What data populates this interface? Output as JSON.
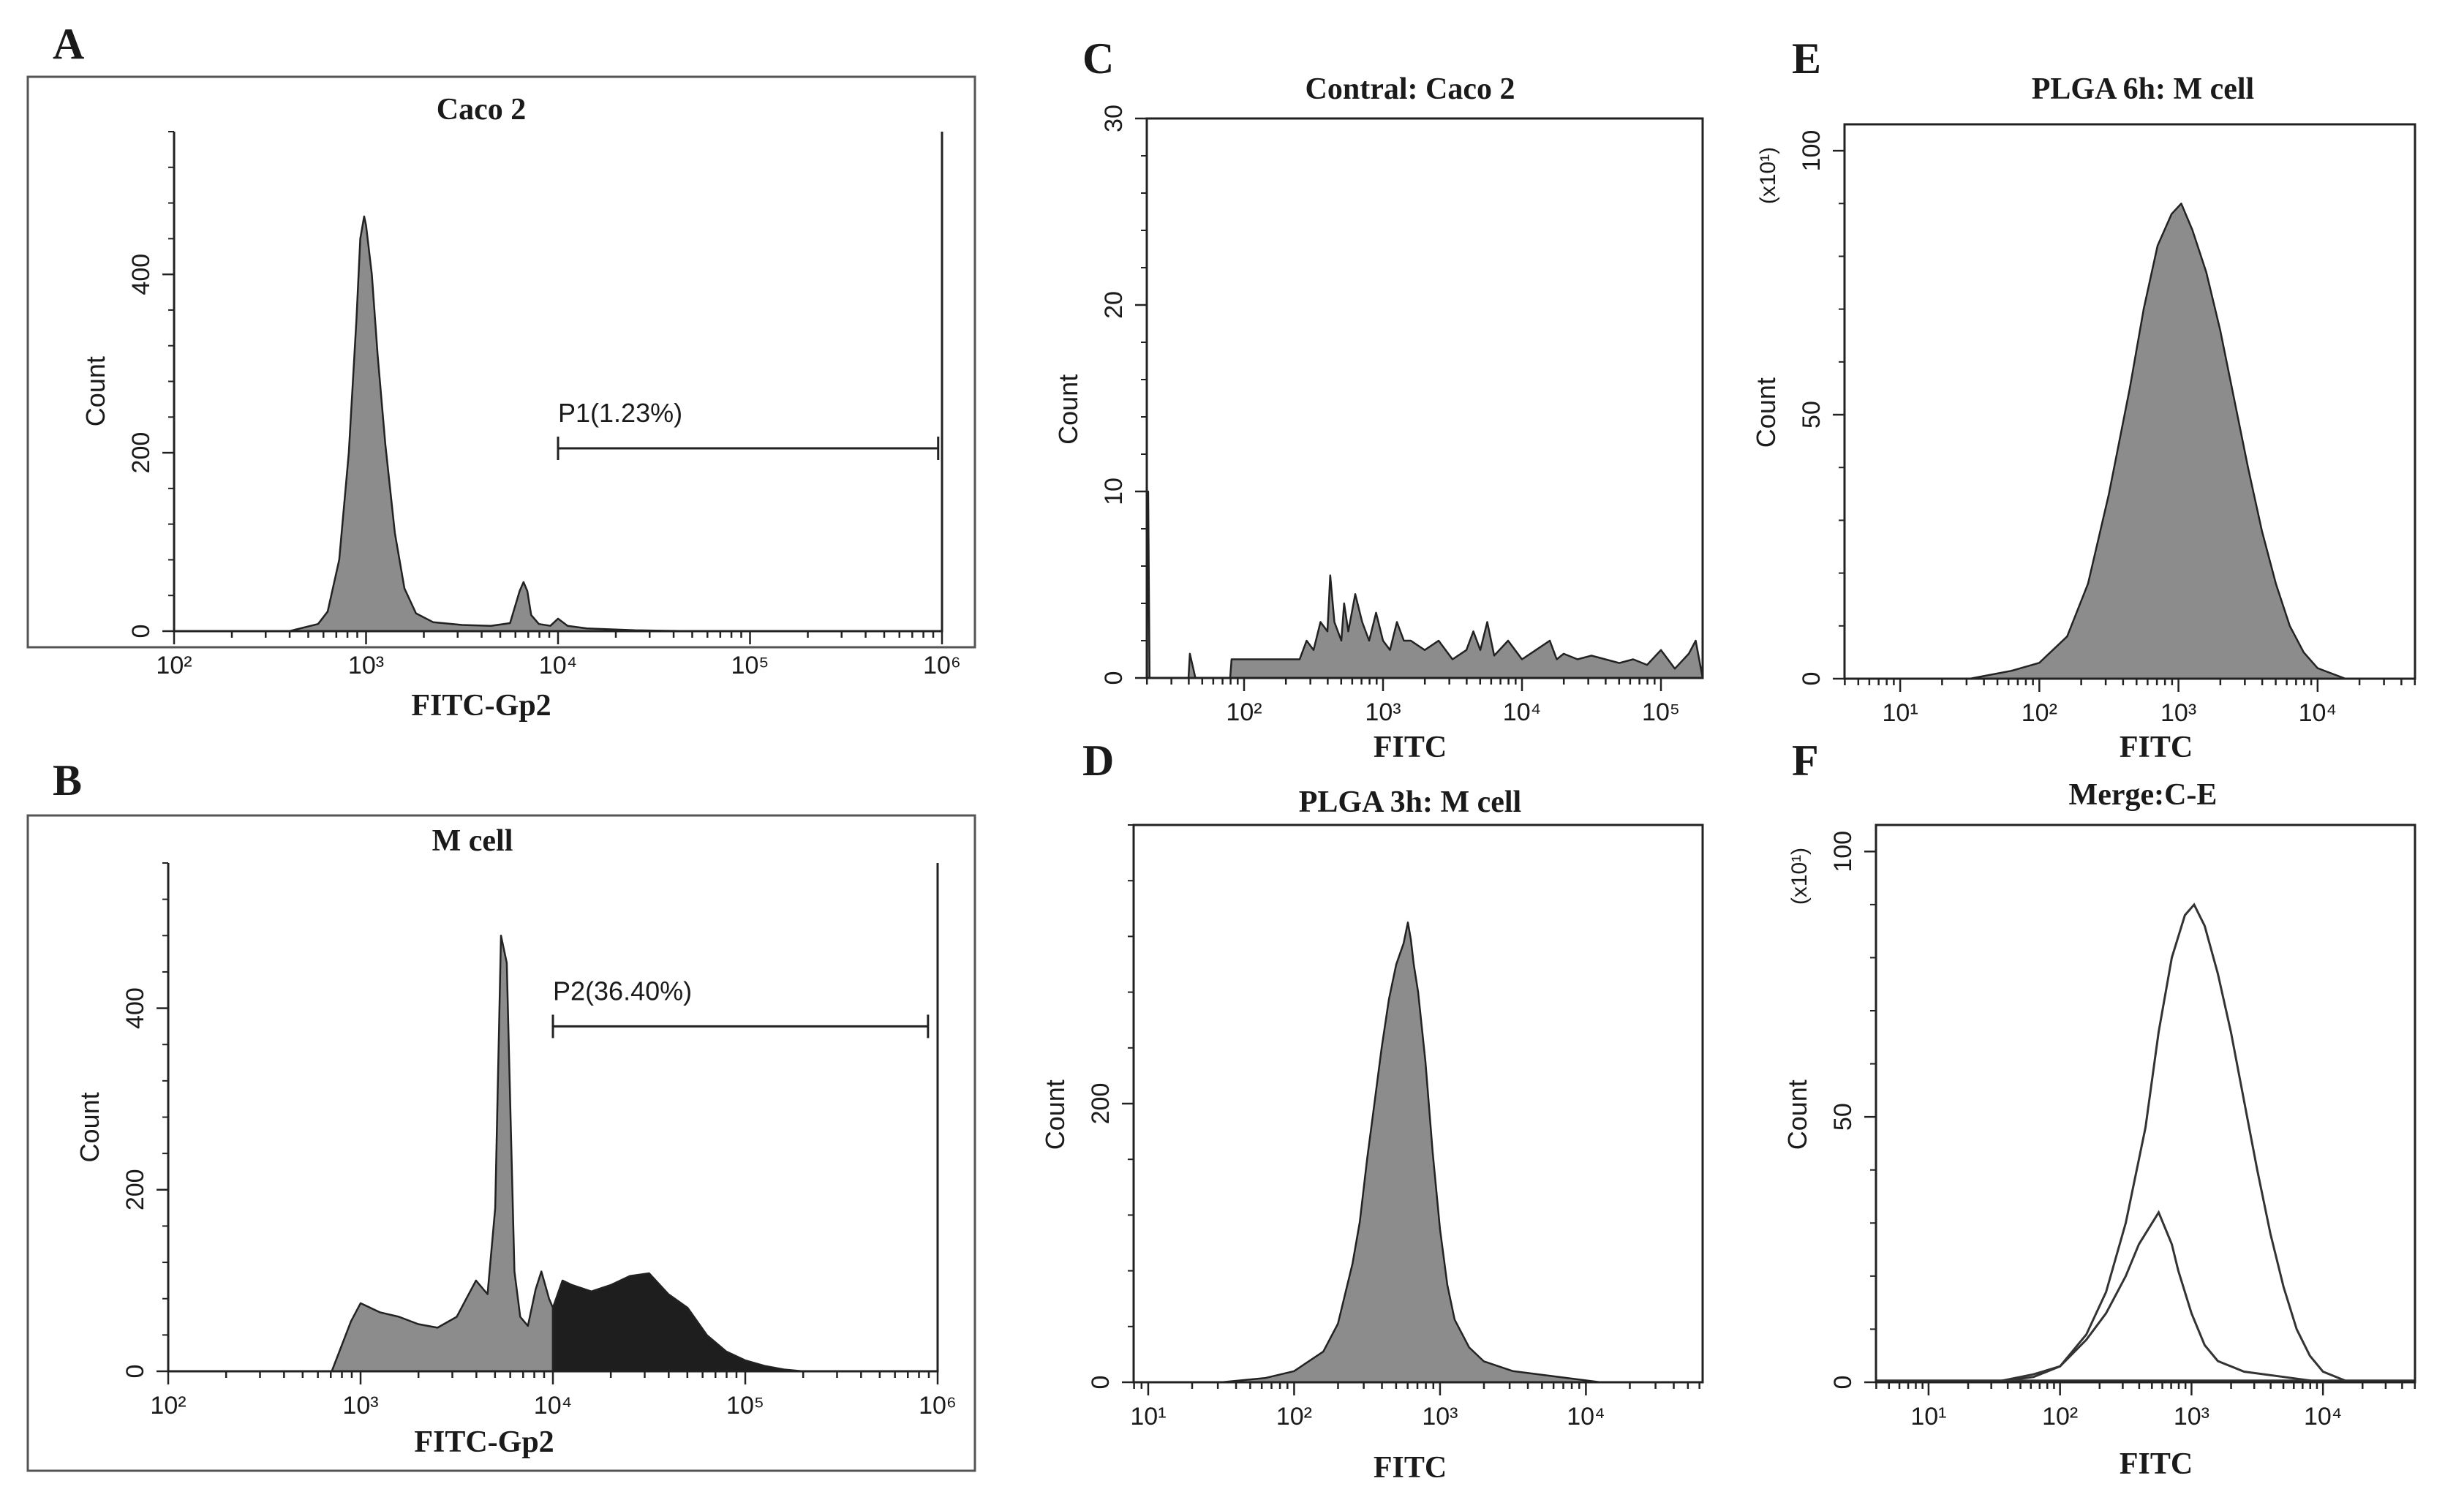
{
  "chart_data": [
    {
      "id": "A",
      "type": "area",
      "panel_letter": "A",
      "title": "Caco 2",
      "xlabel": "FITC-Gp2",
      "ylabel": "Count",
      "xscale": "log",
      "xlim_exp": [
        2,
        6
      ],
      "ylim": [
        0,
        560
      ],
      "xtick_base": "10",
      "xtick_exps": [
        "2",
        "3",
        "4",
        "5",
        "6"
      ],
      "yticks": [
        0,
        200,
        400
      ],
      "ytick_labels": [
        "0",
        "200",
        "400"
      ],
      "frame": "outer-box",
      "series": [
        {
          "name": "Caco 2",
          "color": "#8c8c8c",
          "x": [
            2.6,
            2.75,
            2.8,
            2.86,
            2.91,
            2.95,
            2.97,
            2.99,
            3.0,
            3.03,
            3.06,
            3.1,
            3.15,
            3.2,
            3.26,
            3.35,
            3.5,
            3.65,
            3.75,
            3.8,
            3.82,
            3.84,
            3.86,
            3.9,
            3.96,
            4.0,
            4.05,
            4.15,
            4.4,
            4.7
          ],
          "y": [
            0,
            8,
            22,
            80,
            200,
            350,
            440,
            465,
            455,
            400,
            310,
            210,
            110,
            48,
            20,
            10,
            7,
            6,
            9,
            45,
            55,
            45,
            18,
            8,
            6,
            14,
            6,
            3,
            1,
            0
          ]
        }
      ],
      "gates": [
        {
          "label": "P1(1.23%)",
          "x1": 4.0,
          "x2": 5.98,
          "y": 205
        }
      ]
    },
    {
      "id": "B",
      "type": "area",
      "panel_letter": "B",
      "title": "M cell",
      "xlabel": "FITC-Gp2",
      "ylabel": "Count",
      "xscale": "log",
      "xlim_exp": [
        2,
        6
      ],
      "ylim": [
        0,
        560
      ],
      "xtick_base": "10",
      "xtick_exps": [
        "2",
        "3",
        "4",
        "5",
        "6"
      ],
      "yticks": [
        0,
        200,
        400
      ],
      "ytick_labels": [
        "0",
        "200",
        "400"
      ],
      "frame": "outer-box",
      "series": [
        {
          "name": "M cell (below gate)",
          "color": "#8c8c8c",
          "x": [
            2.85,
            2.95,
            3.0,
            3.1,
            3.2,
            3.3,
            3.4,
            3.5,
            3.55,
            3.6,
            3.66,
            3.7,
            3.73,
            3.76,
            3.78,
            3.8,
            3.83,
            3.87,
            3.91,
            3.94,
            3.96,
            3.98,
            4.0
          ],
          "y": [
            0,
            55,
            75,
            65,
            60,
            52,
            48,
            60,
            80,
            100,
            85,
            180,
            480,
            450,
            280,
            110,
            60,
            50,
            90,
            110,
            95,
            80,
            70
          ]
        },
        {
          "name": "M cell (P2 gate)",
          "color": "#1e1e1e",
          "x": [
            4.0,
            4.05,
            4.1,
            4.2,
            4.3,
            4.4,
            4.5,
            4.6,
            4.7,
            4.8,
            4.9,
            5.0,
            5.1,
            5.2,
            5.3
          ],
          "y": [
            70,
            100,
            95,
            88,
            95,
            105,
            108,
            85,
            70,
            40,
            22,
            12,
            6,
            2,
            0
          ]
        }
      ],
      "gates": [
        {
          "label": "P2(36.40%)",
          "x1": 4.0,
          "x2": 5.95,
          "y": 380
        }
      ]
    },
    {
      "id": "C",
      "type": "area",
      "panel_letter": "C",
      "title": "Contral: Caco 2",
      "xlabel": "FITC",
      "ylabel": "Count",
      "xscale": "log",
      "xlim_exp": [
        1.3,
        5.3
      ],
      "ylim": [
        0,
        30
      ],
      "xtick_base": "10",
      "xtick_exps": [
        "2",
        "3",
        "4",
        "5"
      ],
      "yticks": [
        0,
        10,
        20,
        30
      ],
      "ytick_labels": [
        "0",
        "10",
        "20",
        "30"
      ],
      "frame": "axes-box",
      "series": [
        {
          "name": "Contral: Caco 2",
          "color": "#8c8c8c",
          "x": [
            1.3,
            1.31,
            1.32,
            1.6,
            1.61,
            1.65,
            1.9,
            1.91,
            2.1,
            2.11,
            2.4,
            2.45,
            2.5,
            2.55,
            2.6,
            2.62,
            2.65,
            2.7,
            2.72,
            2.75,
            2.8,
            2.85,
            2.9,
            2.95,
            3.0,
            3.05,
            3.1,
            3.15,
            3.2,
            3.3,
            3.4,
            3.5,
            3.6,
            3.65,
            3.7,
            3.75,
            3.8,
            3.9,
            4.0,
            4.1,
            4.2,
            4.25,
            4.3,
            4.4,
            4.5,
            4.6,
            4.7,
            4.8,
            4.9,
            5.0,
            5.1,
            5.2,
            5.25,
            5.3
          ],
          "y": [
            0,
            10,
            0,
            0,
            1.3,
            0,
            0,
            1,
            1,
            1,
            1,
            2,
            1.5,
            3,
            2.5,
            5.5,
            3,
            2,
            4,
            2.5,
            4.5,
            3,
            2,
            3.5,
            2,
            1.5,
            3,
            2,
            2,
            1.5,
            2,
            1,
            1.5,
            2.5,
            1.5,
            3,
            1.2,
            2,
            1,
            1.5,
            2,
            1,
            1.3,
            1,
            1.2,
            1,
            0.8,
            1,
            0.7,
            1.5,
            0.5,
            1.3,
            2,
            0
          ]
        }
      ]
    },
    {
      "id": "D",
      "type": "area",
      "panel_letter": "D",
      "title": "PLGA 3h: M cell",
      "xlabel": "FITC",
      "ylabel": "Count",
      "xscale": "log",
      "xlim_exp": [
        0.9,
        4.8
      ],
      "ylim": [
        0,
        400
      ],
      "xtick_base": "10",
      "xtick_exps": [
        "1",
        "2",
        "3",
        "4"
      ],
      "yticks": [
        0,
        200
      ],
      "ytick_labels": [
        "0",
        "200"
      ],
      "frame": "axes-box",
      "series": [
        {
          "name": "PLGA 3h: M cell",
          "color": "#8c8c8c",
          "x": [
            1.5,
            1.8,
            2.0,
            2.2,
            2.3,
            2.4,
            2.45,
            2.5,
            2.55,
            2.6,
            2.65,
            2.7,
            2.75,
            2.78,
            2.8,
            2.82,
            2.85,
            2.9,
            2.95,
            3.0,
            3.05,
            3.1,
            3.2,
            3.3,
            3.5,
            3.8,
            4.1
          ],
          "y": [
            0,
            3,
            8,
            22,
            42,
            85,
            115,
            160,
            200,
            240,
            275,
            300,
            315,
            330,
            318,
            300,
            280,
            230,
            165,
            110,
            70,
            45,
            25,
            15,
            8,
            4,
            0
          ]
        }
      ]
    },
    {
      "id": "E",
      "type": "area",
      "panel_letter": "E",
      "title": "PLGA 6h: M cell",
      "xlabel": "FITC",
      "ylabel": "Count",
      "y_multiplier": "(x10¹)",
      "xscale": "log",
      "xlim_exp": [
        0.6,
        4.7
      ],
      "ylim": [
        0,
        105
      ],
      "xtick_base": "10",
      "xtick_exps": [
        "1",
        "2",
        "3",
        "4"
      ],
      "yticks": [
        0,
        50,
        100
      ],
      "ytick_labels": [
        "0",
        "50",
        "100"
      ],
      "frame": "axes-box",
      "series": [
        {
          "name": "PLGA 6h: M cell",
          "color": "#8c8c8c",
          "x": [
            1.5,
            1.8,
            2.0,
            2.2,
            2.35,
            2.5,
            2.65,
            2.75,
            2.85,
            2.95,
            3.02,
            3.1,
            3.2,
            3.3,
            3.4,
            3.5,
            3.6,
            3.7,
            3.8,
            3.9,
            4.0,
            4.2
          ],
          "y": [
            0,
            1.5,
            3,
            8,
            18,
            35,
            55,
            70,
            82,
            88,
            90,
            85,
            77,
            66,
            53,
            40,
            28,
            18,
            10,
            5,
            2,
            0
          ]
        }
      ]
    },
    {
      "id": "F",
      "type": "line",
      "panel_letter": "F",
      "title": "Merge:C-E",
      "xlabel": "FITC",
      "ylabel": "Count",
      "y_multiplier": "(x10¹)",
      "xscale": "log",
      "xlim_exp": [
        0.6,
        4.7
      ],
      "ylim": [
        0,
        105
      ],
      "xtick_base": "10",
      "xtick_exps": [
        "1",
        "2",
        "3",
        "4"
      ],
      "yticks": [
        0,
        50,
        100
      ],
      "ytick_labels": [
        "0",
        "50",
        "100"
      ],
      "frame": "axes-box",
      "series": [
        {
          "name": "Contral: Caco 2",
          "color": "#333333",
          "x": [
            0.6,
            4.7
          ],
          "y": [
            0.3,
            0.3
          ]
        },
        {
          "name": "PLGA 3h: M cell",
          "color": "#333333",
          "x": [
            1.5,
            1.8,
            2.0,
            2.2,
            2.35,
            2.5,
            2.6,
            2.7,
            2.75,
            2.8,
            2.85,
            2.9,
            3.0,
            3.1,
            3.2,
            3.4,
            3.7,
            4.0
          ],
          "y": [
            0,
            1,
            3,
            8,
            13,
            20,
            26,
            30,
            32,
            29,
            26,
            21,
            13,
            7,
            4,
            2,
            1,
            0
          ]
        },
        {
          "name": "PLGA 6h: M cell",
          "color": "#333333",
          "x": [
            1.5,
            1.8,
            2.0,
            2.2,
            2.35,
            2.5,
            2.65,
            2.75,
            2.85,
            2.95,
            3.02,
            3.1,
            3.2,
            3.3,
            3.4,
            3.5,
            3.6,
            3.7,
            3.8,
            3.9,
            4.0,
            4.2
          ],
          "y": [
            0,
            1.5,
            3,
            9,
            17,
            30,
            48,
            66,
            80,
            88,
            90,
            86,
            77,
            66,
            53,
            40,
            28,
            18,
            10,
            5,
            2,
            0
          ]
        }
      ]
    }
  ]
}
